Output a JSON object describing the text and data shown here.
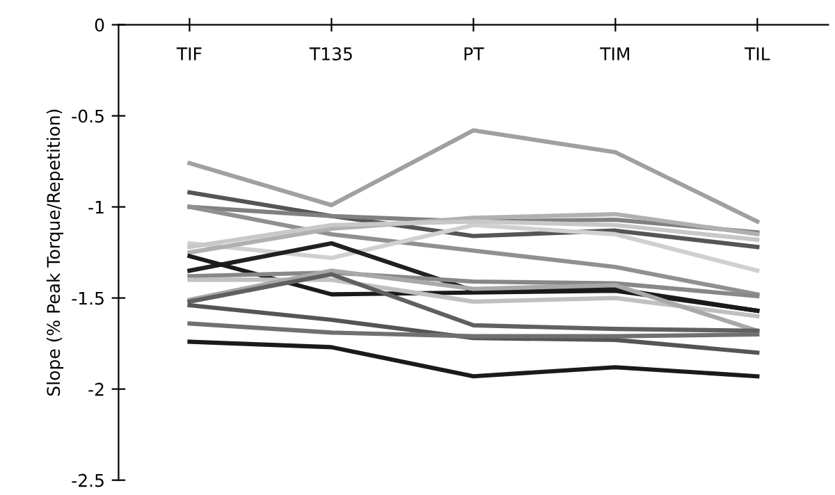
{
  "chart_data": {
    "type": "line",
    "ylabel": "Slope (% Peak Torque/Repetition)",
    "categories": [
      "TIF",
      "T135",
      "PT",
      "TIM",
      "TIL"
    ],
    "ylim": [
      -2.5,
      0
    ],
    "yticks": [
      0,
      -0.5,
      -1,
      -1.5,
      -2,
      -2.5
    ],
    "grid": false,
    "legend": false,
    "marker": "none",
    "line_style": "solid",
    "series": [
      {
        "color": "#a0a0a0",
        "values": [
          -0.76,
          -0.99,
          -0.58,
          -0.7,
          -1.08
        ]
      },
      {
        "color": "#555555",
        "values": [
          -0.92,
          -1.05,
          -1.16,
          -1.13,
          -1.22
        ]
      },
      {
        "color": "#808080",
        "values": [
          -1.0,
          -1.05,
          -1.08,
          -1.07,
          -1.14
        ]
      },
      {
        "color": "#909090",
        "values": [
          -1.0,
          -1.15,
          -1.24,
          -1.33,
          -1.48
        ]
      },
      {
        "color": "#d0d0d0",
        "values": [
          -1.2,
          -1.28,
          -1.1,
          -1.15,
          -1.35
        ]
      },
      {
        "color": "#b0b0b0",
        "values": [
          -1.25,
          -1.12,
          -1.06,
          -1.04,
          -1.15
        ]
      },
      {
        "color": "#c8c8c8",
        "values": [
          -1.22,
          -1.1,
          -1.08,
          -1.1,
          -1.18
        ]
      },
      {
        "color": "#202020",
        "values": [
          -1.35,
          -1.2,
          -1.46,
          -1.45,
          -1.57
        ]
      },
      {
        "color": "#1a1a1a",
        "values": [
          -1.27,
          -1.48,
          -1.47,
          -1.46,
          -1.57
        ]
      },
      {
        "color": "#888888",
        "values": [
          -1.38,
          -1.36,
          -1.41,
          -1.42,
          -1.49
        ]
      },
      {
        "color": "#c0c0c0",
        "values": [
          -1.4,
          -1.4,
          -1.52,
          -1.5,
          -1.6
        ]
      },
      {
        "color": "#a8a8a8",
        "values": [
          -1.51,
          -1.35,
          -1.45,
          -1.43,
          -1.68
        ]
      },
      {
        "color": "#606060",
        "values": [
          -1.52,
          -1.37,
          -1.65,
          -1.67,
          -1.68
        ]
      },
      {
        "color": "#555555",
        "values": [
          -1.54,
          -1.62,
          -1.72,
          -1.73,
          -1.8
        ]
      },
      {
        "color": "#707070",
        "values": [
          -1.64,
          -1.69,
          -1.71,
          -1.71,
          -1.7
        ]
      },
      {
        "color": "#1a1a1a",
        "values": [
          -1.74,
          -1.77,
          -1.93,
          -1.88,
          -1.93
        ]
      }
    ]
  }
}
